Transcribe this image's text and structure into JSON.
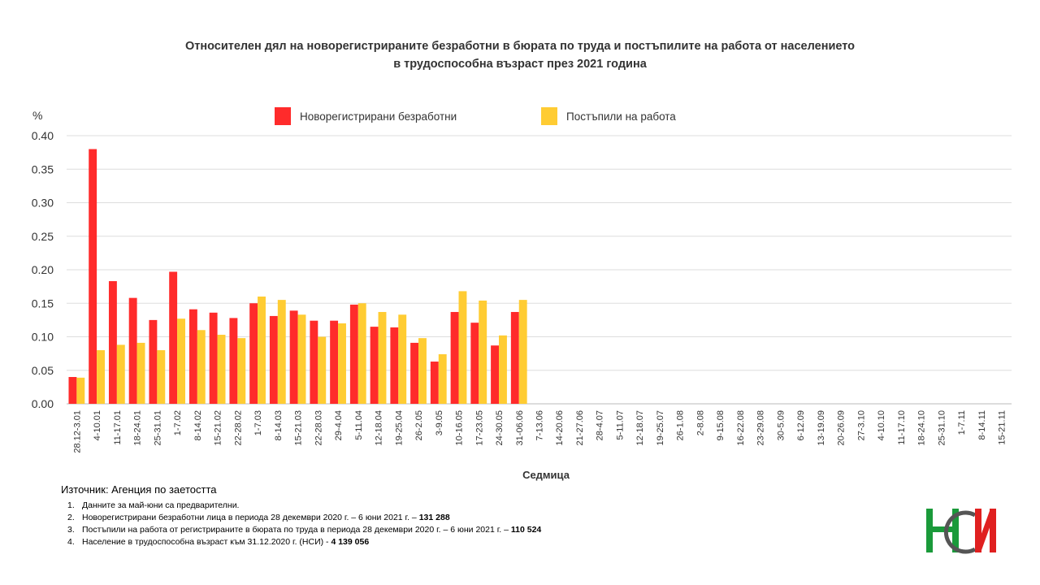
{
  "chart_data": {
    "type": "bar",
    "title": "Относителен дял на новорегистрираните безработни в бюрата по труда и постъпилите на работа от населението",
    "subtitle": "в трудоспособна възраст през 2021 година",
    "y_label": "%",
    "x_label": "Седмица",
    "categories": [
      "28.12-3.01",
      "4-10.01",
      "11-17.01",
      "18-24.01",
      "25-31.01",
      "1-7.02",
      "8-14.02",
      "15-21.02",
      "22-28.02",
      "1-7.03",
      "8-14.03",
      "15-21.03",
      "22-28.03",
      "29-4.04",
      "5-11.04",
      "12-18.04",
      "19-25.04",
      "26-2.05",
      "3-9.05",
      "10-16.05",
      "17-23.05",
      "24-30.05",
      "31-06.06",
      "7-13.06",
      "14-20.06",
      "21-27.06",
      "28-4.07",
      "5-11.07",
      "12-18.07",
      "19-25.07",
      "26-1.08",
      "2-8.08",
      "9-15.08",
      "16-22.08",
      "23-29.08",
      "30-5.09",
      "6-12.09",
      "13-19.09",
      "20-26.09",
      "27-3.10",
      "4-10.10",
      "11-17.10",
      "18-24.10",
      "25-31.10",
      "1-7.11",
      "8-14.11",
      "15-21.11"
    ],
    "series": [
      {
        "name": "Новорегистрирани безработни",
        "color": "#ff2b2b",
        "values": [
          0.04,
          0.38,
          0.183,
          0.158,
          0.125,
          0.197,
          0.141,
          0.136,
          0.128,
          0.15,
          0.131,
          0.139,
          0.124,
          0.124,
          0.148,
          0.115,
          0.114,
          0.091,
          0.063,
          0.137,
          0.121,
          0.087,
          0.137,
          null,
          null,
          null,
          null,
          null,
          null,
          null,
          null,
          null,
          null,
          null,
          null,
          null,
          null,
          null,
          null,
          null,
          null,
          null,
          null,
          null,
          null,
          null,
          null
        ]
      },
      {
        "name": "Постъпили на работа",
        "color": "#ffcc33",
        "values": [
          0.039,
          0.08,
          0.088,
          0.091,
          0.08,
          0.127,
          0.11,
          0.103,
          0.098,
          0.16,
          0.155,
          0.133,
          0.1,
          0.12,
          0.15,
          0.137,
          0.133,
          0.098,
          0.074,
          0.168,
          0.154,
          0.102,
          0.155,
          null,
          null,
          null,
          null,
          null,
          null,
          null,
          null,
          null,
          null,
          null,
          null,
          null,
          null,
          null,
          null,
          null,
          null,
          null,
          null,
          null,
          null,
          null,
          null
        ]
      }
    ],
    "ylim": [
      0,
      0.4
    ],
    "yticks": [
      {
        "value": 0,
        "label": "0.00"
      },
      {
        "value": 0.05,
        "label": "0.05"
      },
      {
        "value": 0.1,
        "label": "0.10"
      },
      {
        "value": 0.15,
        "label": "0.15"
      },
      {
        "value": 0.2,
        "label": "0.20"
      },
      {
        "value": 0.25,
        "label": "0.25"
      },
      {
        "value": 0.3,
        "label": "0.30"
      },
      {
        "value": 0.35,
        "label": "0.35"
      },
      {
        "value": 0.4,
        "label": "0.40"
      }
    ],
    "grid": true
  },
  "source": "Източник: Агенция по заетостта",
  "notes": [
    {
      "num": "1.",
      "text": "Данните за май-юни са предварителни."
    },
    {
      "num": "2.",
      "text": "Новорегистрирани безработни лица в периода 28 декември 2020 г. – 6 юни 2021 г. –",
      "bold": "131 288"
    },
    {
      "num": "3.",
      "text": "Постъпили на работа от регистрираните в бюрата по труда в периода 28 декември 2020 г. – 6 юни 2021 г. –",
      "bold": "110 524"
    },
    {
      "num": "4.",
      "text": "Население в трудоспособна възраст към 31.12.2020 г. (НСИ) -",
      "bold": "4 139 056"
    }
  ]
}
